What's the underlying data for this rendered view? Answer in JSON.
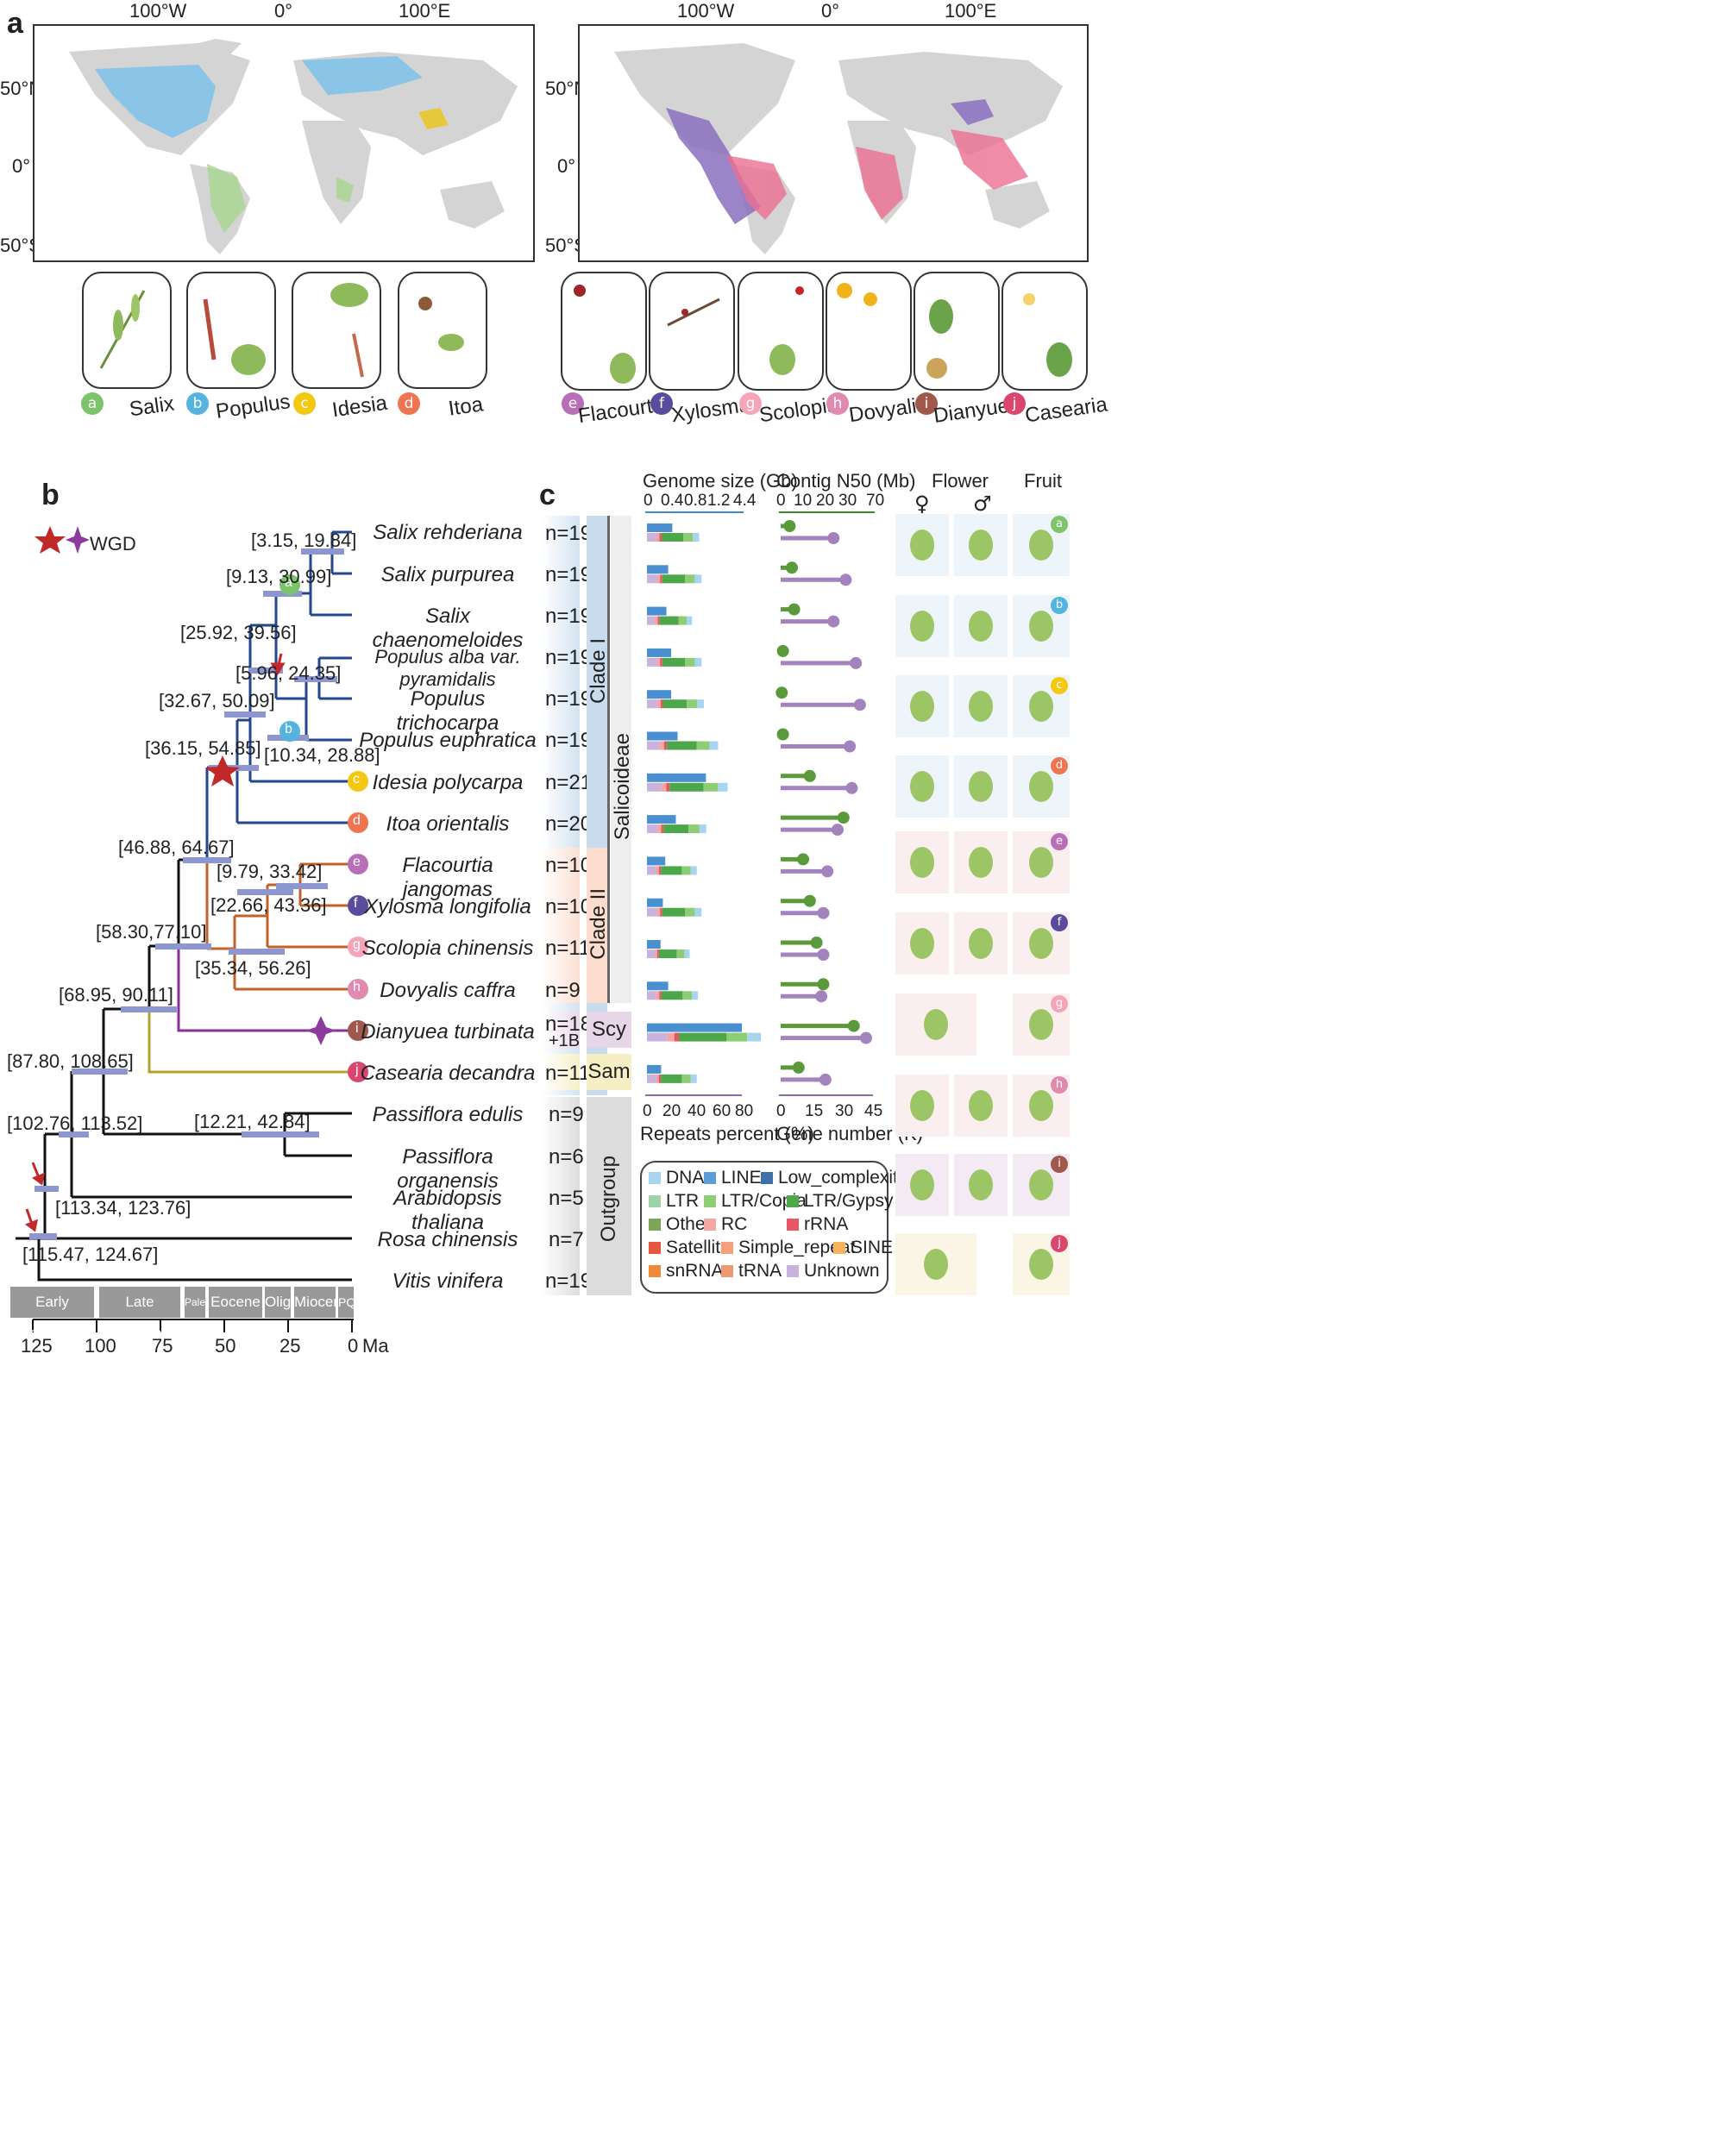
{
  "panel_a": {
    "label": "a",
    "left_map": {
      "lon_ticks": [
        "100°W",
        "0°",
        "100°E"
      ],
      "lat_ticks": [
        "50°N",
        "0°",
        "50°S"
      ]
    },
    "right_map": {
      "lon_ticks": [
        "100°W",
        "0°",
        "100°E"
      ],
      "lat_ticks": [
        "50°N",
        "0°",
        "50°S"
      ]
    },
    "genera": [
      {
        "badge": "a",
        "name": "Salix",
        "color": "#7cc46c"
      },
      {
        "badge": "b",
        "name": "Populus",
        "color": "#55b3e0"
      },
      {
        "badge": "c",
        "name": "Idesia",
        "color": "#f2c811"
      },
      {
        "badge": "d",
        "name": "Itoa",
        "color": "#ef7550"
      },
      {
        "badge": "e",
        "name": "Flacourtia",
        "color": "#b86fb8"
      },
      {
        "badge": "f",
        "name": "Xylosma",
        "color": "#5a4c9c"
      },
      {
        "badge": "g",
        "name": "Scolopia",
        "color": "#f4a6b8"
      },
      {
        "badge": "h",
        "name": "Dovyalis",
        "color": "#e08ab0"
      },
      {
        "badge": "i",
        "name": "Dianyuea",
        "color": "#a0584c"
      },
      {
        "badge": "j",
        "name": "Casearia",
        "color": "#d9476e"
      }
    ]
  },
  "panel_b": {
    "label": "b",
    "wgd_label": "WGD",
    "node_labels": [
      "[3.15, 19.84]",
      "[9.13, 30.99]",
      "[25.92, 39.56]",
      "[5.96, 24.35]",
      "[32.67, 50.09]",
      "[10.34, 28.88]",
      "[36.15, 54.85]",
      "[46.88, 64.67]",
      "[9.79, 33.42]",
      "[22.66, 43.36]",
      "[58.30,77.10]",
      "[35.34, 56.26]",
      "[68.95, 90.11]",
      "[87.80, 108.65]",
      "[12.21, 42.84]",
      "[102.76, 113.52]",
      "[113.34, 123.76]",
      "[115.47, 124.67]"
    ],
    "species": [
      {
        "name": "Salix rehderiana",
        "n": "n=19"
      },
      {
        "name": "Salix purpurea",
        "n": "n=19"
      },
      {
        "name": "Salix chaenomeloides",
        "n": "n=19"
      },
      {
        "name": "Populus alba var. pyramidalis",
        "n": "n=19"
      },
      {
        "name": "Populus trichocarpa",
        "n": "n=19"
      },
      {
        "name": "Populus euphratica",
        "n": "n=19"
      },
      {
        "name": "Idesia polycarpa",
        "n": "n=21"
      },
      {
        "name": "Itoa orientalis",
        "n": "n=20"
      },
      {
        "name": "Flacourtia jangomas",
        "n": "n=10"
      },
      {
        "name": "Xylosma longifolia",
        "n": "n=10"
      },
      {
        "name": "Scolopia chinensis",
        "n": "n=11"
      },
      {
        "name": "Dovyalis caffra",
        "n": "n=9"
      },
      {
        "name": "Dianyuea turbinata",
        "n": "n=18",
        "n2": "+1B"
      },
      {
        "name": "Casearia decandra",
        "n": "n=11"
      },
      {
        "name": "Passiflora edulis",
        "n": "n=9"
      },
      {
        "name": "Passiflora organensis",
        "n": "n=6"
      },
      {
        "name": "Arabidopsis thaliana",
        "n": "n=5"
      },
      {
        "name": "Rosa chinensis",
        "n": "n=7"
      },
      {
        "name": "Vitis vinifera",
        "n": "n=19"
      }
    ],
    "epochs": [
      "Early Cretaceous",
      "Late Cretaceous",
      "Paleo",
      "Eocene",
      "Oligo",
      "Miocene",
      "PQ"
    ],
    "time_ticks": [
      "125",
      "100",
      "75",
      "50",
      "25",
      "0"
    ],
    "time_unit": "Ma"
  },
  "panel_c": {
    "label": "c",
    "clades": [
      "Clade I",
      "Clade II",
      "Salicoideae",
      "Scy",
      "Sam",
      "Outgroup"
    ],
    "genome_size": {
      "title": "Genome size (Gb)",
      "ticks": [
        "0",
        "0.4",
        "0.8",
        "1.2",
        "4.4"
      ]
    },
    "contig_n50": {
      "title": "Contig N50 (Mb)",
      "ticks": [
        "0",
        "10",
        "20",
        "30",
        "70"
      ]
    },
    "repeats": {
      "title": "Repeats percent (%)",
      "ticks": [
        "0",
        "20",
        "40",
        "60",
        "80"
      ]
    },
    "genes": {
      "title": "Gene number (K)",
      "ticks": [
        "0",
        "15",
        "30",
        "45"
      ]
    },
    "flower_title": "Flower",
    "fruit_title": "Fruit",
    "female": "♀",
    "male": "♂",
    "legend": [
      {
        "name": "DNA",
        "color": "#a9d4ef"
      },
      {
        "name": "LINE",
        "color": "#5b9fd6"
      },
      {
        "name": "Low_complexity",
        "color": "#3f6fa8"
      },
      {
        "name": "LTR",
        "color": "#9ed3a8"
      },
      {
        "name": "LTR/Copia",
        "color": "#8fcd74"
      },
      {
        "name": "LTR/Gypsy",
        "color": "#4ca64a"
      },
      {
        "name": "Other",
        "color": "#7ea657"
      },
      {
        "name": "RC",
        "color": "#f2a7a3"
      },
      {
        "name": "rRNA",
        "color": "#e85566"
      },
      {
        "name": "Satellite",
        "color": "#e5573e"
      },
      {
        "name": "Simple_repeat",
        "color": "#f3a07d"
      },
      {
        "name": "SINE",
        "color": "#f6b35b"
      },
      {
        "name": "snRNA",
        "color": "#f08a3a"
      },
      {
        "name": "tRNA",
        "color": "#eb9a72"
      },
      {
        "name": "Unknown",
        "color": "#c9b2dd"
      }
    ],
    "rows": [
      {
        "size": 0.43,
        "n50": 4,
        "rep": 44,
        "genes": 26
      },
      {
        "size": 0.36,
        "n50": 5,
        "rep": 46,
        "genes": 32
      },
      {
        "size": 0.33,
        "n50": 6,
        "rep": 38,
        "genes": 26
      },
      {
        "size": 0.41,
        "n50": 1,
        "rep": 46,
        "genes": 37
      },
      {
        "size": 0.41,
        "n50": 0.5,
        "rep": 48,
        "genes": 39
      },
      {
        "size": 0.52,
        "n50": 1,
        "rep": 60,
        "genes": 34
      },
      {
        "size": 1.0,
        "n50": 13,
        "rep": 68,
        "genes": 35
      },
      {
        "size": 0.49,
        "n50": 28,
        "rep": 50,
        "genes": 28
      },
      {
        "size": 0.31,
        "n50": 10,
        "rep": 42,
        "genes": 23
      },
      {
        "size": 0.27,
        "n50": 13,
        "rep": 46,
        "genes": 21
      },
      {
        "size": 0.23,
        "n50": 16,
        "rep": 36,
        "genes": 21
      },
      {
        "size": 0.36,
        "n50": 19,
        "rep": 43,
        "genes": 20
      },
      {
        "size": 4.4,
        "n50": 39,
        "rep": 96,
        "genes": 42
      },
      {
        "size": 0.24,
        "n50": 8,
        "rep": 42,
        "genes": 22
      }
    ]
  }
}
